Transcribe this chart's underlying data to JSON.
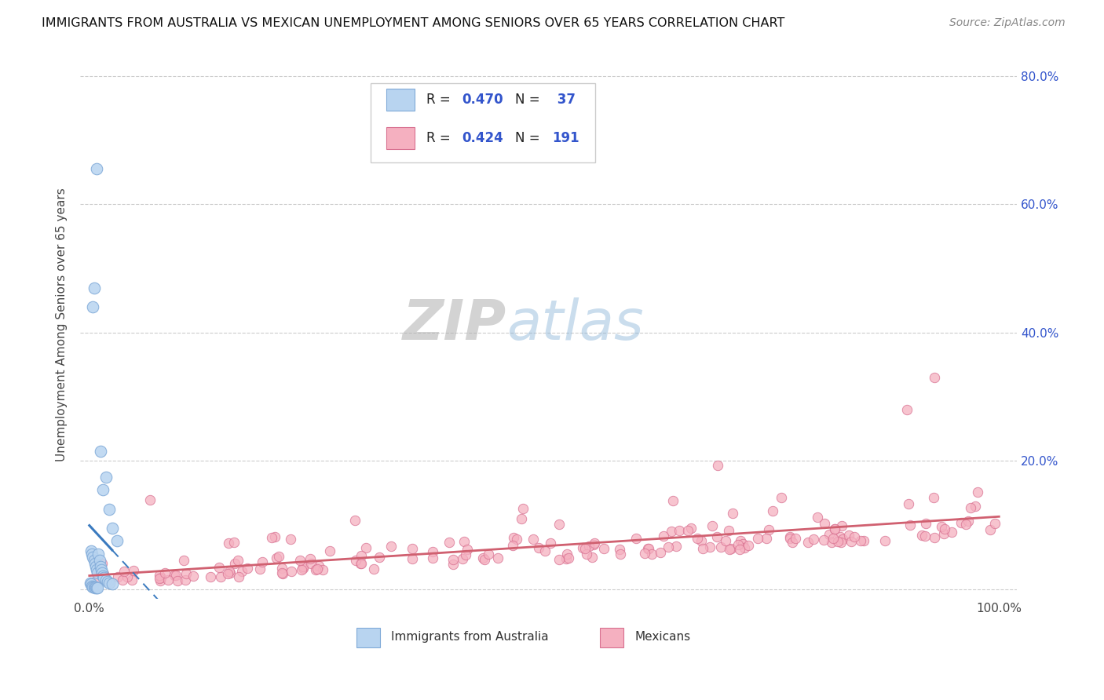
{
  "title": "IMMIGRANTS FROM AUSTRALIA VS MEXICAN UNEMPLOYMENT AMONG SENIORS OVER 65 YEARS CORRELATION CHART",
  "source": "Source: ZipAtlas.com",
  "ylabel": "Unemployment Among Seniors over 65 years",
  "ytick_vals": [
    0.0,
    0.2,
    0.4,
    0.6,
    0.8
  ],
  "ytick_labels": [
    "",
    "20.0%",
    "40.0%",
    "60.0%",
    "80.0%"
  ],
  "xtick_vals": [
    0.0,
    1.0
  ],
  "xtick_labels": [
    "0.0%",
    "100.0%"
  ],
  "xlim": [
    -0.01,
    1.02
  ],
  "ylim": [
    -0.015,
    0.84
  ],
  "legend_r1": "R = 0.470",
  "legend_n1": "N =  37",
  "legend_r2": "R = 0.424",
  "legend_n2": "N = 191",
  "color_australia_fill": "#b8d4f0",
  "color_australia_edge": "#80aad8",
  "color_australia_line": "#3a7abf",
  "color_mexico_fill": "#f5b0c0",
  "color_mexico_edge": "#d87090",
  "color_mexico_line": "#d06070",
  "color_grid": "#cccccc",
  "color_legend_num": "#3355cc",
  "color_ylabel": "#444444",
  "color_title": "#111111",
  "color_source": "#888888",
  "color_xtick": "#444444",
  "color_ytick": "#3355cc",
  "watermark_ZIP_color": "#aaaaaa",
  "watermark_atlas_color": "#aac4e8",
  "scatter_size_aus": 110,
  "scatter_size_mex": 80
}
